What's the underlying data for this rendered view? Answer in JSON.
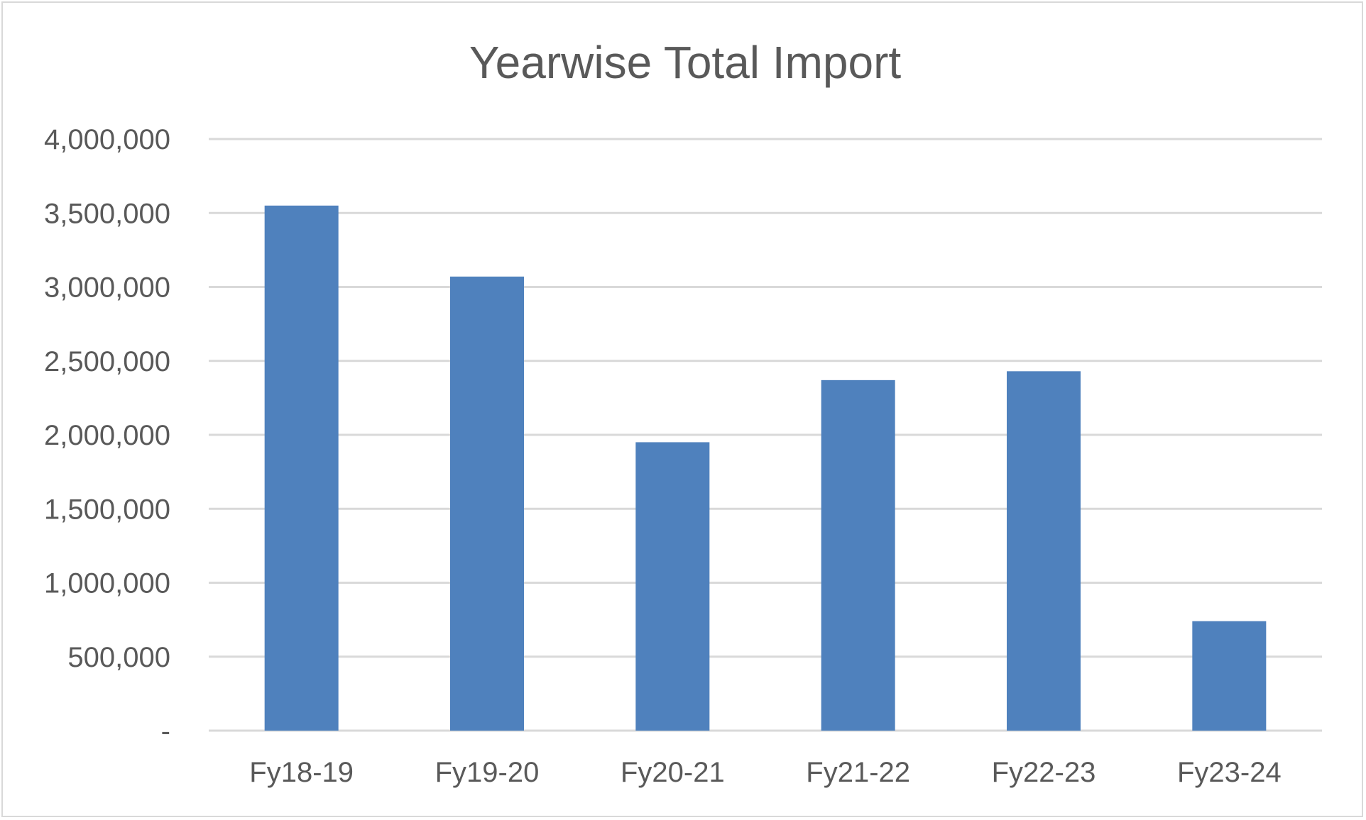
{
  "chart_data": {
    "type": "bar",
    "title": "Yearwise Total Import",
    "xlabel": "",
    "ylabel": "",
    "categories": [
      "Fy18-19",
      "Fy19-20",
      "Fy20-21",
      "Fy21-22",
      "Fy22-23",
      "Fy23-24"
    ],
    "values": [
      3550000,
      3070000,
      1950000,
      2370000,
      2430000,
      740000
    ],
    "ylim": [
      0,
      4000000
    ],
    "yticks": [
      0,
      500000,
      1000000,
      1500000,
      2000000,
      2500000,
      3000000,
      3500000,
      4000000
    ],
    "ytick_labels": [
      "-",
      "500,000",
      "1,000,000",
      "1,500,000",
      "2,000,000",
      "2,500,000",
      "3,000,000",
      "3,500,000",
      "4,000,000"
    ],
    "bar_color": "#4f81bd",
    "grid": true,
    "legend": "none"
  }
}
